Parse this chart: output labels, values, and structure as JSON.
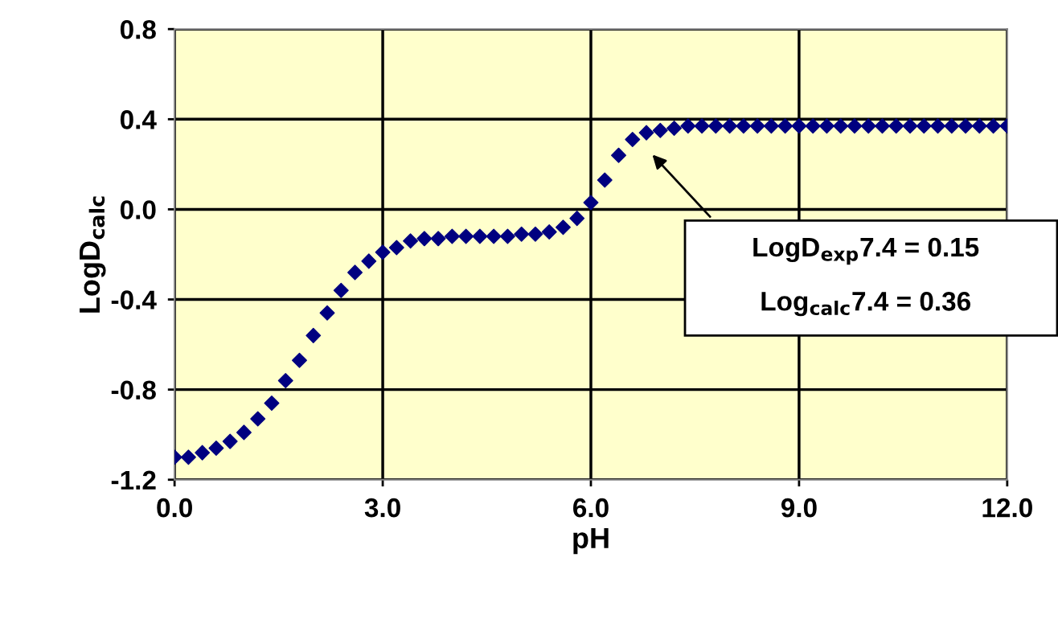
{
  "chart_data": {
    "type": "scatter",
    "xlabel": "pH",
    "ylabel": "LogD$_{calc}$",
    "x": [
      0.0,
      0.2,
      0.4,
      0.6,
      0.8,
      1.0,
      1.2,
      1.4,
      1.6,
      1.8,
      2.0,
      2.2,
      2.4,
      2.6,
      2.8,
      3.0,
      3.2,
      3.4,
      3.6,
      3.8,
      4.0,
      4.2,
      4.4,
      4.6,
      4.8,
      5.0,
      5.2,
      5.4,
      5.6,
      5.8,
      6.0,
      6.2,
      6.4,
      6.6,
      6.8,
      7.0,
      7.2,
      7.4,
      7.6,
      7.8,
      8.0,
      8.2,
      8.4,
      8.6,
      8.8,
      9.0,
      9.2,
      9.4,
      9.6,
      9.8,
      10.0,
      10.2,
      10.4,
      10.6,
      10.8,
      11.0,
      11.2,
      11.4,
      11.6,
      11.8,
      12.0
    ],
    "series": [
      {
        "color": "#000080",
        "values": [
          -1.1,
          -1.1,
          -1.08,
          -1.06,
          -1.03,
          -0.99,
          -0.93,
          -0.86,
          -0.76,
          -0.67,
          -0.56,
          -0.46,
          -0.36,
          -0.28,
          -0.23,
          -0.19,
          -0.17,
          -0.14,
          -0.13,
          -0.13,
          -0.12,
          -0.12,
          -0.12,
          -0.12,
          -0.12,
          -0.11,
          -0.11,
          -0.1,
          -0.08,
          -0.04,
          0.03,
          0.13,
          0.24,
          0.31,
          0.34,
          0.35,
          0.36,
          0.37,
          0.37,
          0.37,
          0.37,
          0.37,
          0.37,
          0.37,
          0.37,
          0.37,
          0.37,
          0.37,
          0.37,
          0.37,
          0.37,
          0.37,
          0.37,
          0.37,
          0.37,
          0.37,
          0.37,
          0.37,
          0.37,
          0.37,
          0.37
        ]
      }
    ],
    "xlim": [
      0,
      12
    ],
    "xticks": [
      {
        "value": 0,
        "label": "0.0"
      },
      {
        "value": 3,
        "label": "3.0"
      },
      {
        "value": 6,
        "label": "6.0"
      },
      {
        "value": 9,
        "label": "9.0"
      },
      {
        "value": 12,
        "label": "12.0"
      }
    ],
    "ylim": [
      -1.2,
      0.8
    ],
    "yticks": [
      {
        "value": -1.2,
        "label": "-1.2"
      },
      {
        "value": -0.8,
        "label": "-0.8"
      },
      {
        "value": -0.4,
        "label": "-0.4"
      },
      {
        "value": 0,
        "label": "0.0"
      },
      {
        "value": 0.4,
        "label": "0.4"
      },
      {
        "value": 0.8,
        "label": "0.8"
      }
    ],
    "grid": true,
    "marker": "diamond",
    "annotations": [
      "LogD$_{exp}$7.4 = 0.15",
      "Log$_{calc}$7.4 = 0.36"
    ]
  }
}
